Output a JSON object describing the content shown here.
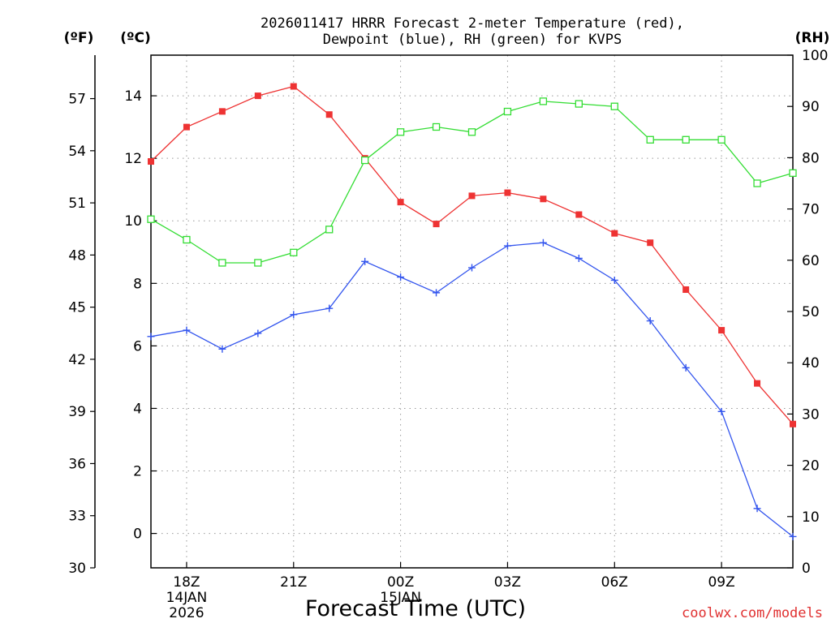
{
  "chart_data": {
    "type": "line",
    "title": "2026011417 HRRR Forecast 2-meter Temperature (red),",
    "subtitle": "Dewpoint (blue), RH (green) for KVPS",
    "xlabel": "Forecast Time (UTC)",
    "credit": "coolwx.com/models",
    "units": {
      "fahrenheit": "(ºF)",
      "celsius": "(ºC)",
      "rh": "(RH)"
    },
    "x_hours": [
      17,
      18,
      19,
      20,
      21,
      22,
      23,
      24,
      25,
      26,
      27,
      28,
      29,
      30,
      31,
      32,
      33,
      34,
      35
    ],
    "x_ticks": [
      {
        "hour": 18,
        "lines": [
          "18Z",
          "14JAN",
          "2026"
        ]
      },
      {
        "hour": 21,
        "lines": [
          "21Z"
        ]
      },
      {
        "hour": 24,
        "lines": [
          "00Z",
          "15JAN"
        ]
      },
      {
        "hour": 27,
        "lines": [
          "03Z"
        ]
      },
      {
        "hour": 30,
        "lines": [
          "06Z"
        ]
      },
      {
        "hour": 33,
        "lines": [
          "09Z"
        ]
      }
    ],
    "celsius_axis": {
      "min": -1.1,
      "max": 15.3,
      "ticks": [
        0,
        2,
        4,
        6,
        8,
        10,
        12,
        14
      ]
    },
    "fahrenheit_axis": {
      "min": 30,
      "max": 59.5,
      "ticks": [
        30,
        33,
        36,
        39,
        42,
        45,
        48,
        51,
        54,
        57
      ]
    },
    "rh_axis": {
      "min": 0,
      "max": 100,
      "ticks": [
        0,
        10,
        20,
        30,
        40,
        50,
        60,
        70,
        80,
        90,
        100
      ]
    },
    "series": [
      {
        "name": "Temperature",
        "axis": "celsius",
        "color": "#ee3333",
        "marker": "filled-square",
        "values": [
          11.9,
          13.0,
          13.5,
          14.0,
          14.3,
          13.4,
          12.0,
          10.6,
          9.9,
          10.8,
          10.9,
          10.7,
          10.2,
          9.6,
          9.3,
          7.8,
          6.5,
          4.8,
          3.5
        ]
      },
      {
        "name": "Dewpoint",
        "axis": "celsius",
        "color": "#3355ee",
        "marker": "plus",
        "values": [
          6.3,
          6.5,
          5.9,
          6.4,
          7.0,
          7.2,
          8.7,
          8.2,
          7.7,
          8.5,
          9.2,
          9.3,
          8.8,
          8.1,
          6.8,
          5.3,
          3.9,
          0.8,
          -0.1
        ]
      },
      {
        "name": "RH",
        "axis": "rh",
        "color": "#33dd33",
        "marker": "open-square",
        "values": [
          68,
          64,
          59.5,
          59.5,
          61.5,
          66,
          79.5,
          85,
          86,
          85,
          89,
          91,
          90.5,
          90,
          83.5,
          83.5,
          83.5,
          75,
          77
        ]
      }
    ],
    "grid": true
  }
}
